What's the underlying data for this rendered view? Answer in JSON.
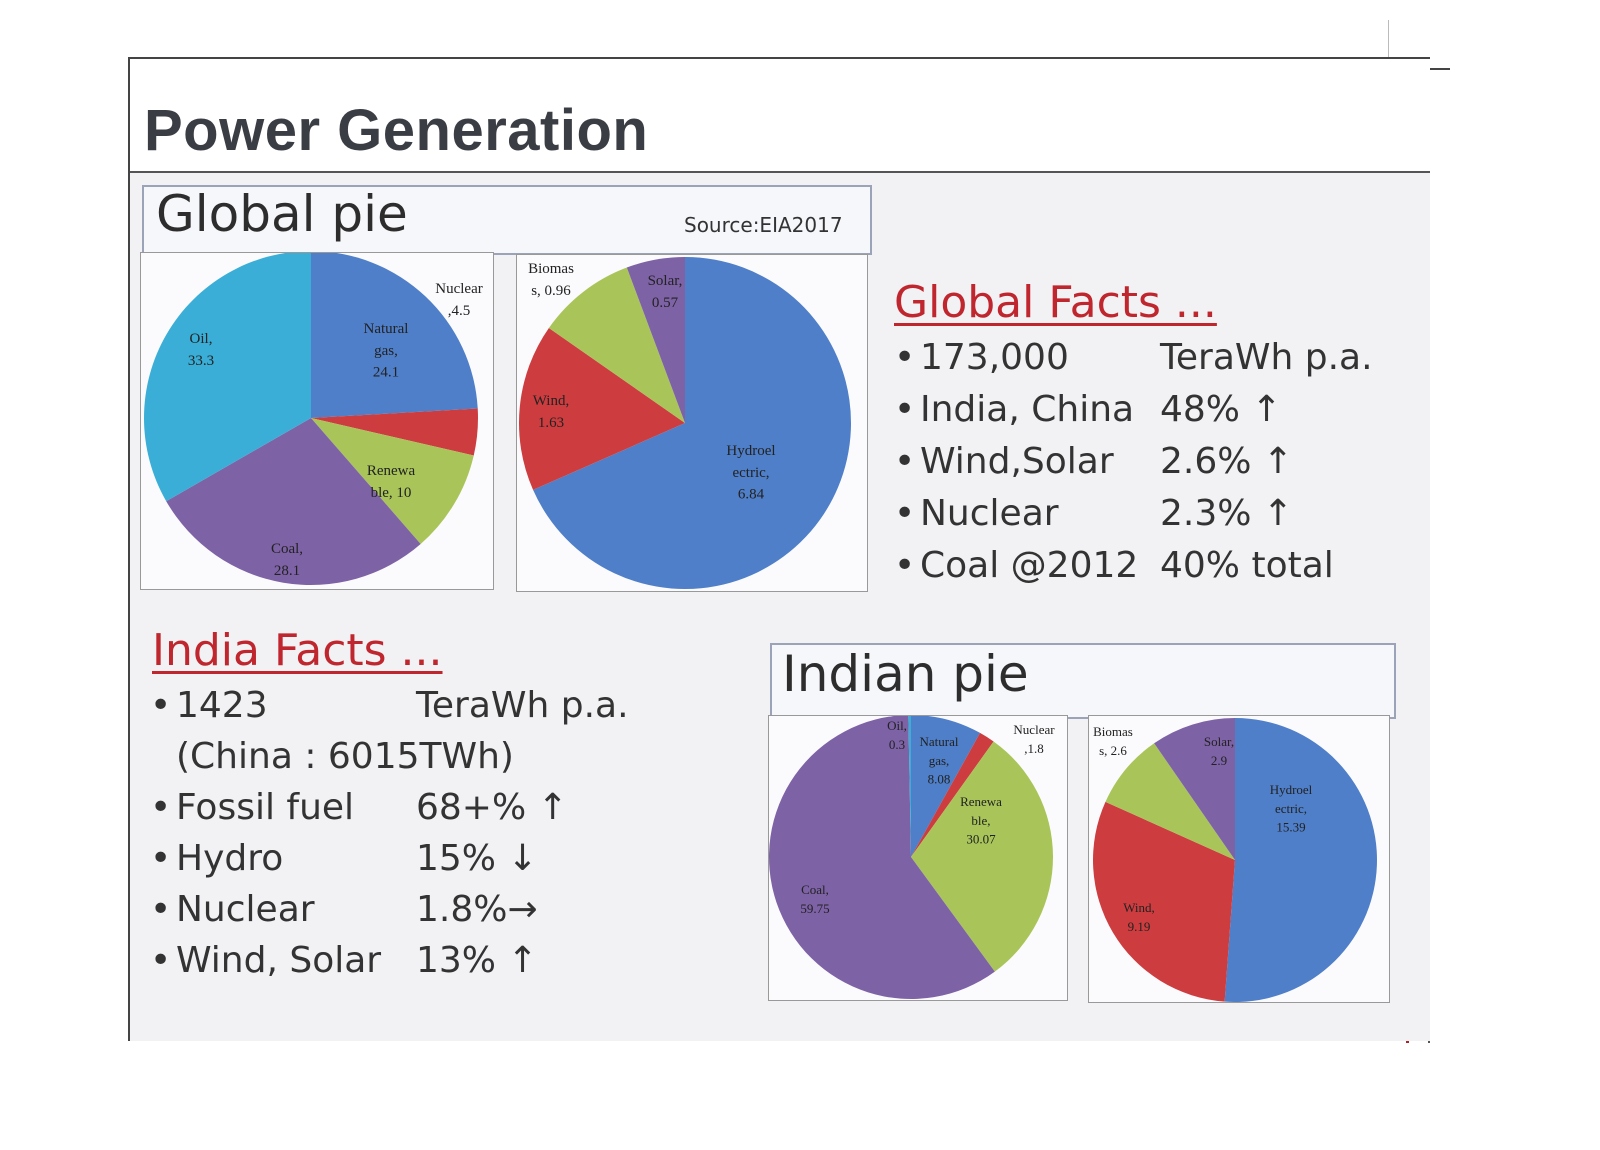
{
  "page": {
    "title": "Power Generation"
  },
  "global_section": {
    "label": "Global pie",
    "source": "Source:EIA2017"
  },
  "indian_section": {
    "label": "Indian pie"
  },
  "global_facts": {
    "heading": "Global Facts ...",
    "items": [
      {
        "key": "173,000",
        "value": "TeraWh p.a."
      },
      {
        "key": "India, China",
        "value": "48% ↑"
      },
      {
        "key": "Wind,Solar",
        "value": "2.6% ↑"
      },
      {
        "key": "Nuclear",
        "value": "2.3% ↑"
      },
      {
        "key": "Coal @2012",
        "value": "40% total"
      }
    ]
  },
  "india_facts": {
    "heading": "India Facts ...",
    "items": [
      {
        "key": "1423",
        "value": "TeraWh p.a."
      },
      {
        "key": "(China : 6015TWh)",
        "value": ""
      },
      {
        "key": "Fossil fuel",
        "value": "68+% ↑"
      },
      {
        "key": "Hydro",
        "value": "15% ↓"
      },
      {
        "key": "Nuclear",
        "value": "1.8%→"
      },
      {
        "key": "Wind, Solar",
        "value": "13% ↑"
      }
    ]
  },
  "colors": {
    "blue": "#4f7fc8",
    "red": "#cd3d3f",
    "green": "#a9c55a",
    "purple": "#7e62a6",
    "cyan": "#3aaed6",
    "heading_red": "#c0262d"
  },
  "chart_data": [
    {
      "type": "pie",
      "id": "global_main",
      "slices": [
        {
          "label": "Natural gas",
          "value": 24.1,
          "text": [
            "Natural",
            "gas,",
            "24.1"
          ],
          "color": "#4f7fc8"
        },
        {
          "label": "Nuclear",
          "value": 4.5,
          "text": [
            "Nuclear",
            ",4.5"
          ],
          "color": "#cd3d3f"
        },
        {
          "label": "Renewable",
          "value": 10,
          "text": [
            "Renewa",
            "ble, 10"
          ],
          "color": "#a9c55a"
        },
        {
          "label": "Coal",
          "value": 28.1,
          "text": [
            "Coal,",
            "28.1"
          ],
          "color": "#7e62a6"
        },
        {
          "label": "Oil",
          "value": 33.3,
          "text": [
            "Oil,",
            "33.3"
          ],
          "color": "#3aaed6"
        }
      ]
    },
    {
      "type": "pie",
      "id": "global_renewables",
      "slices": [
        {
          "label": "Hydroelectric",
          "value": 6.84,
          "text": [
            "Hydroel",
            "ectric,",
            "6.84"
          ],
          "color": "#4f7fc8"
        },
        {
          "label": "Wind",
          "value": 1.63,
          "text": [
            "Wind,",
            "1.63"
          ],
          "color": "#cd3d3f"
        },
        {
          "label": "Biomass",
          "value": 0.96,
          "text": [
            "Biomas",
            "s, 0.96"
          ],
          "color": "#a9c55a"
        },
        {
          "label": "Solar",
          "value": 0.57,
          "text": [
            "Solar,",
            "0.57"
          ],
          "color": "#7e62a6"
        }
      ]
    },
    {
      "type": "pie",
      "id": "india_main",
      "slices": [
        {
          "label": "Natural gas",
          "value": 8.08,
          "text": [
            "Natural",
            "gas,",
            "8.08"
          ],
          "color": "#4f7fc8"
        },
        {
          "label": "Nuclear",
          "value": 1.8,
          "text": [
            "Nuclear",
            ",1.8"
          ],
          "color": "#cd3d3f"
        },
        {
          "label": "Renewable",
          "value": 30.07,
          "text": [
            "Renewa",
            "ble,",
            "30.07"
          ],
          "color": "#a9c55a"
        },
        {
          "label": "Coal",
          "value": 59.75,
          "text": [
            "Coal,",
            "59.75"
          ],
          "color": "#7e62a6"
        },
        {
          "label": "Oil",
          "value": 0.3,
          "text": [
            "Oil,",
            "0.3"
          ],
          "color": "#3aaed6"
        }
      ]
    },
    {
      "type": "pie",
      "id": "india_renewables",
      "slices": [
        {
          "label": "Hydroelectric",
          "value": 15.39,
          "text": [
            "Hydroel",
            "ectric,",
            "15.39"
          ],
          "color": "#4f7fc8"
        },
        {
          "label": "Wind",
          "value": 9.19,
          "text": [
            "Wind,",
            "9.19"
          ],
          "color": "#cd3d3f"
        },
        {
          "label": "Biomass",
          "value": 2.6,
          "text": [
            "Biomas",
            "s, 2.6"
          ],
          "color": "#a9c55a"
        },
        {
          "label": "Solar",
          "value": 2.9,
          "text": [
            "Solar,",
            "2.9"
          ],
          "color": "#7e62a6"
        }
      ]
    }
  ]
}
